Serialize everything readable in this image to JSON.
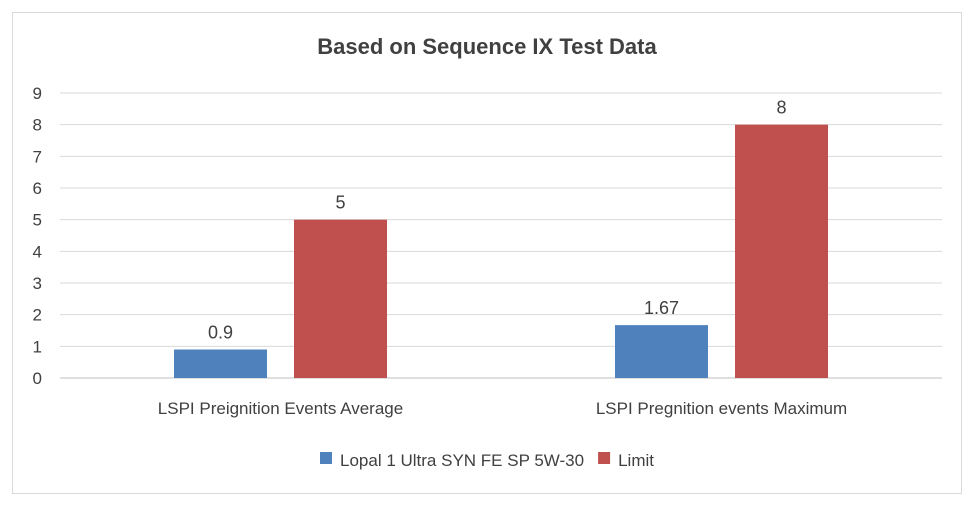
{
  "chart_data": {
    "type": "bar",
    "title": "Based on Sequence IX Test Data",
    "categories": [
      "LSPI Preignition Events Average",
      "LSPI Pregnition events Maximum"
    ],
    "series": [
      {
        "name": "Lopal 1 Ultra SYN FE SP 5W-30",
        "values": [
          0.9,
          1.67
        ],
        "labels": [
          "0.9",
          "1.67"
        ],
        "color": "#4f81bd"
      },
      {
        "name": "Limit",
        "values": [
          5,
          8
        ],
        "labels": [
          "5",
          "8"
        ],
        "color": "#c0504d"
      }
    ],
    "ylim": [
      0,
      9
    ],
    "yticks": [
      "0",
      "1",
      "2",
      "3",
      "4",
      "5",
      "6",
      "7",
      "8",
      "9"
    ],
    "grid": true,
    "legend": "bottom"
  }
}
